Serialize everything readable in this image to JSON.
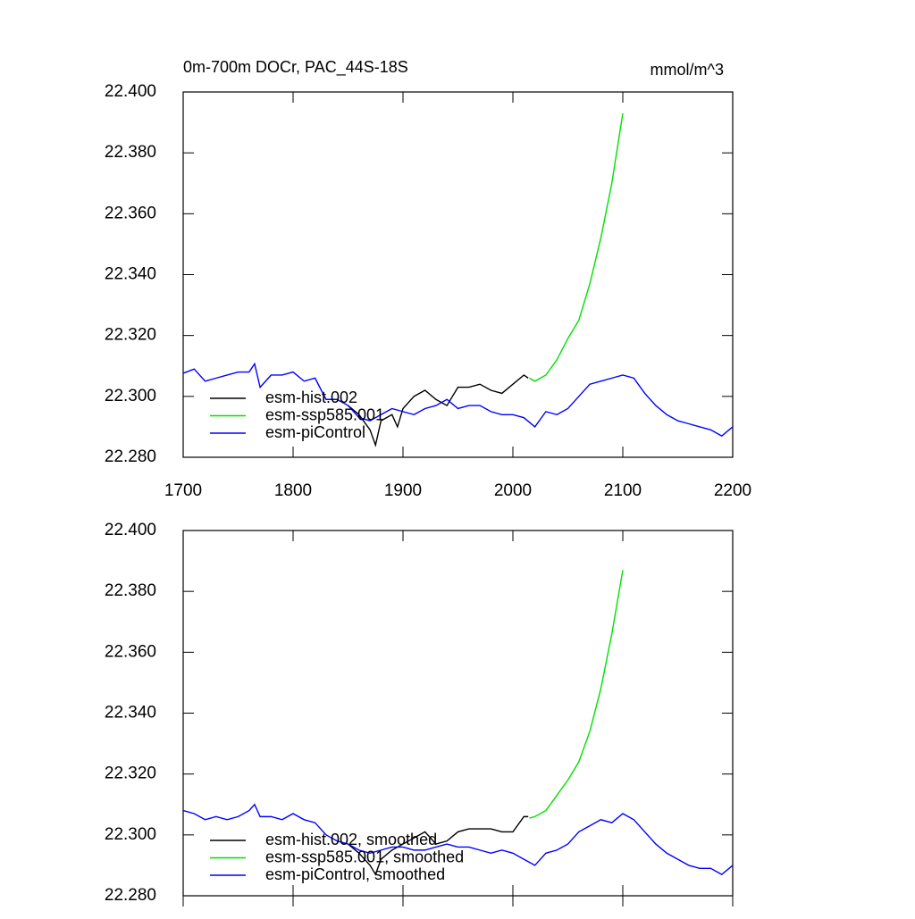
{
  "chart_data": [
    {
      "type": "line",
      "title": "0m-700m DOCr, PAC_44S-18S",
      "units": "mmol/m^3",
      "xlim": [
        1700,
        2200
      ],
      "xticks": [
        1700,
        1800,
        1900,
        2000,
        2100,
        2200
      ],
      "xtick_labels": true,
      "ylim": [
        22.28,
        22.4
      ],
      "yticks": [
        {
          "value": 22.28,
          "label": "22.280"
        },
        {
          "value": 22.3,
          "label": "22.300"
        },
        {
          "value": 22.32,
          "label": "22.320"
        },
        {
          "value": 22.34,
          "label": "22.340"
        },
        {
          "value": 22.36,
          "label": "22.360"
        },
        {
          "value": 22.38,
          "label": "22.380"
        },
        {
          "value": 22.4,
          "label": "22.400"
        }
      ],
      "legend": "lower left",
      "series": [
        {
          "name": "esm-hist.002",
          "color": "#000000",
          "x": [
            1850,
            1860,
            1870,
            1875,
            1880,
            1890,
            1895,
            1900,
            1910,
            1920,
            1930,
            1940,
            1950,
            1960,
            1970,
            1980,
            1990,
            2000,
            2010,
            2014
          ],
          "values": [
            22.297,
            22.294,
            22.289,
            22.284,
            22.292,
            22.294,
            22.29,
            22.296,
            22.3,
            22.302,
            22.299,
            22.297,
            22.303,
            22.303,
            22.304,
            22.302,
            22.301,
            22.304,
            22.307,
            22.306
          ]
        },
        {
          "name": "esm-ssp585.001",
          "color": "#00e000",
          "x": [
            2015,
            2020,
            2030,
            2040,
            2050,
            2060,
            2070,
            2080,
            2090,
            2100
          ],
          "values": [
            22.306,
            22.305,
            22.307,
            22.312,
            22.319,
            22.325,
            22.337,
            22.352,
            22.37,
            22.393
          ]
        },
        {
          "name": "esm-piControl",
          "color": "#0000ff",
          "x": [
            1700,
            1710,
            1720,
            1730,
            1740,
            1750,
            1760,
            1765,
            1770,
            1780,
            1790,
            1800,
            1810,
            1820,
            1830,
            1840,
            1850,
            1860,
            1870,
            1880,
            1890,
            1900,
            1910,
            1920,
            1930,
            1940,
            1950,
            1960,
            1970,
            1980,
            1990,
            2000,
            2010,
            2020,
            2030,
            2040,
            2050,
            2060,
            2070,
            2080,
            2090,
            2100,
            2110,
            2120,
            2130,
            2140,
            2150,
            2160,
            2170,
            2180,
            2190,
            2200
          ],
          "values": [
            22.3076,
            22.309,
            22.305,
            22.306,
            22.307,
            22.308,
            22.308,
            22.3107,
            22.303,
            22.307,
            22.307,
            22.308,
            22.305,
            22.306,
            22.299,
            22.299,
            22.297,
            22.293,
            22.292,
            22.294,
            22.296,
            22.295,
            22.294,
            22.296,
            22.297,
            22.299,
            22.296,
            22.297,
            22.297,
            22.295,
            22.294,
            22.294,
            22.293,
            22.29,
            22.295,
            22.294,
            22.296,
            22.3,
            22.304,
            22.305,
            22.306,
            22.307,
            22.306,
            22.301,
            22.297,
            22.294,
            22.292,
            22.291,
            22.29,
            22.289,
            22.287,
            22.29
          ]
        }
      ]
    },
    {
      "type": "line",
      "xlim": [
        1700,
        2200
      ],
      "xticks": [
        1700,
        1800,
        1900,
        2000,
        2100,
        2200
      ],
      "xtick_labels": false,
      "ylim": [
        22.28,
        22.4
      ],
      "yticks": [
        {
          "value": 22.28,
          "label": "22.280"
        },
        {
          "value": 22.3,
          "label": "22.300"
        },
        {
          "value": 22.32,
          "label": "22.320"
        },
        {
          "value": 22.34,
          "label": "22.340"
        },
        {
          "value": 22.36,
          "label": "22.360"
        },
        {
          "value": 22.38,
          "label": "22.380"
        },
        {
          "value": 22.4,
          "label": "22.400"
        }
      ],
      "legend": "lower left",
      "series": [
        {
          "name": "esm-hist.002, smoothed",
          "color": "#000000",
          "x": [
            1850,
            1860,
            1870,
            1875,
            1880,
            1890,
            1900,
            1910,
            1920,
            1930,
            1940,
            1950,
            1960,
            1970,
            1980,
            1990,
            2000,
            2010,
            2014
          ],
          "values": [
            22.297,
            22.294,
            22.29,
            22.287,
            22.292,
            22.295,
            22.297,
            22.299,
            22.301,
            22.297,
            22.298,
            22.301,
            22.302,
            22.302,
            22.302,
            22.301,
            22.301,
            22.306,
            22.306
          ]
        },
        {
          "name": "esm-ssp585.001, smoothed",
          "color": "#00e000",
          "x": [
            2015,
            2020,
            2030,
            2040,
            2050,
            2060,
            2070,
            2080,
            2090,
            2100
          ],
          "values": [
            22.3055,
            22.306,
            22.308,
            22.313,
            22.318,
            22.324,
            22.334,
            22.348,
            22.366,
            22.387
          ]
        },
        {
          "name": "esm-piControl, smoothed",
          "color": "#0000ff",
          "x": [
            1700,
            1710,
            1720,
            1730,
            1740,
            1750,
            1760,
            1765,
            1770,
            1780,
            1790,
            1800,
            1810,
            1820,
            1830,
            1840,
            1850,
            1860,
            1870,
            1880,
            1890,
            1900,
            1910,
            1920,
            1930,
            1940,
            1950,
            1960,
            1970,
            1980,
            1990,
            2000,
            2010,
            2020,
            2030,
            2040,
            2050,
            2060,
            2070,
            2080,
            2090,
            2100,
            2110,
            2120,
            2130,
            2140,
            2150,
            2160,
            2170,
            2180,
            2190,
            2200
          ],
          "values": [
            22.308,
            22.307,
            22.305,
            22.306,
            22.305,
            22.306,
            22.308,
            22.31,
            22.306,
            22.306,
            22.305,
            22.307,
            22.305,
            22.304,
            22.3,
            22.298,
            22.297,
            22.295,
            22.294,
            22.295,
            22.296,
            22.296,
            22.295,
            22.295,
            22.296,
            22.297,
            22.296,
            22.296,
            22.295,
            22.294,
            22.295,
            22.294,
            22.292,
            22.29,
            22.294,
            22.295,
            22.297,
            22.301,
            22.303,
            22.305,
            22.304,
            22.307,
            22.305,
            22.301,
            22.297,
            22.294,
            22.292,
            22.29,
            22.289,
            22.289,
            22.287,
            22.29
          ]
        }
      ]
    }
  ]
}
